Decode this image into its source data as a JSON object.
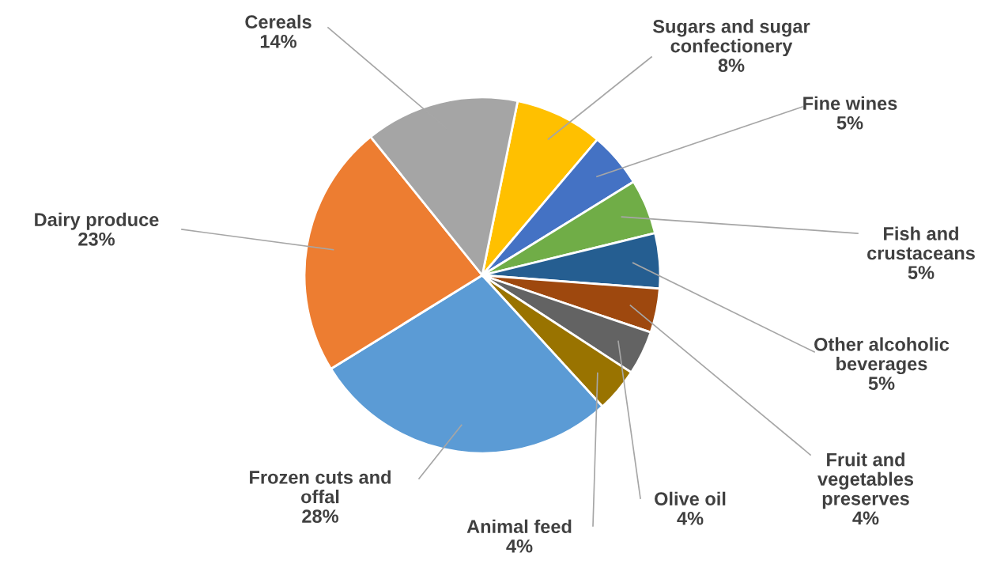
{
  "chart_data": {
    "type": "pie",
    "categories": [
      "Sugars and sugar\nconfectionery",
      "Fine wines",
      "Fish and\ncrustaceans",
      "Other alcoholic\nbeverages",
      "Fruit and\nvegetables\npreserves",
      "Olive oil",
      "Animal feed",
      "Frozen cuts and\noffal",
      "Dairy produce",
      "Cereals"
    ],
    "values": [
      8,
      5,
      5,
      5,
      4,
      4,
      4,
      28,
      23,
      14
    ],
    "value_labels": [
      "8%",
      "5%",
      "5%",
      "5%",
      "4%",
      "4%",
      "4%",
      "28%",
      "23%",
      "14%"
    ],
    "colors": [
      "#ffc000",
      "#4472c4",
      "#70ad47",
      "#255e91",
      "#9e480e",
      "#636363",
      "#997300",
      "#5b9bd5",
      "#ed7d31",
      "#a5a5a5"
    ]
  }
}
